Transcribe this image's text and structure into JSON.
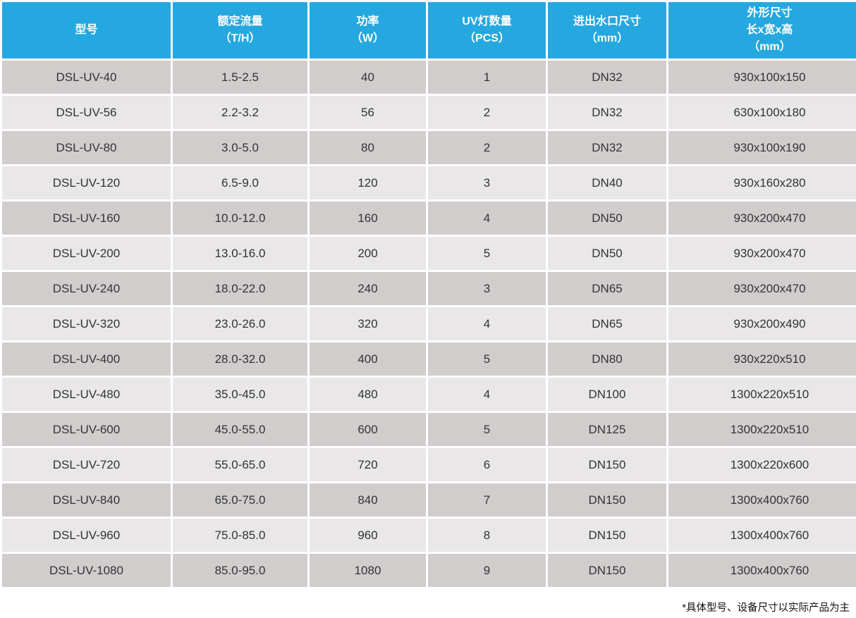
{
  "colors": {
    "header_bg": "#25A8E0",
    "header_text": "#FFFFFF",
    "row_dark_bg": "#D1CDCD",
    "row_light_bg": "#E9E7E7",
    "cell_text": "#333333",
    "page_bg": "#FFFFFF"
  },
  "table": {
    "columns": [
      {
        "id": "model",
        "label_lines": [
          "型号"
        ]
      },
      {
        "id": "rated_flow",
        "label_lines": [
          "额定流量",
          "（T/H）"
        ]
      },
      {
        "id": "power",
        "label_lines": [
          "功率",
          "（W）"
        ]
      },
      {
        "id": "uv_lamp_qty",
        "label_lines": [
          "UV灯数量",
          "（PCS）"
        ]
      },
      {
        "id": "port_size",
        "label_lines": [
          "进出水口尺寸",
          "（mm）"
        ]
      },
      {
        "id": "dimensions",
        "label_lines": [
          "外形尺寸",
          "长x宽x高",
          "（mm）"
        ]
      }
    ],
    "rows": [
      [
        "DSL-UV-40",
        "1.5-2.5",
        "40",
        "1",
        "DN32",
        "930x100x150"
      ],
      [
        "DSL-UV-56",
        "2.2-3.2",
        "56",
        "2",
        "DN32",
        "630x100x180"
      ],
      [
        "DSL-UV-80",
        "3.0-5.0",
        "80",
        "2",
        "DN32",
        "930x100x190"
      ],
      [
        "DSL-UV-120",
        "6.5-9.0",
        "120",
        "3",
        "DN40",
        "930x160x280"
      ],
      [
        "DSL-UV-160",
        "10.0-12.0",
        "160",
        "4",
        "DN50",
        "930x200x470"
      ],
      [
        "DSL-UV-200",
        "13.0-16.0",
        "200",
        "5",
        "DN50",
        "930x200x470"
      ],
      [
        "DSL-UV-240",
        "18.0-22.0",
        "240",
        "3",
        "DN65",
        "930x200x470"
      ],
      [
        "DSL-UV-320",
        "23.0-26.0",
        "320",
        "4",
        "DN65",
        "930x200x490"
      ],
      [
        "DSL-UV-400",
        "28.0-32.0",
        "400",
        "5",
        "DN80",
        "930x220x510"
      ],
      [
        "DSL-UV-480",
        "35.0-45.0",
        "480",
        "4",
        "DN100",
        "1300x220x510"
      ],
      [
        "DSL-UV-600",
        "45.0-55.0",
        "600",
        "5",
        "DN125",
        "1300x220x510"
      ],
      [
        "DSL-UV-720",
        "55.0-65.0",
        "720",
        "6",
        "DN150",
        "1300x220x600"
      ],
      [
        "DSL-UV-840",
        "65.0-75.0",
        "840",
        "7",
        "DN150",
        "1300x400x760"
      ],
      [
        "DSL-UV-960",
        "75.0-85.0",
        "960",
        "8",
        "DN150",
        "1300x400x760"
      ],
      [
        "DSL-UV-1080",
        "85.0-95.0",
        "1080",
        "9",
        "DN150",
        "1300x400x760"
      ]
    ]
  },
  "footnote": "*具体型号、设备尺寸以实际产品为主"
}
